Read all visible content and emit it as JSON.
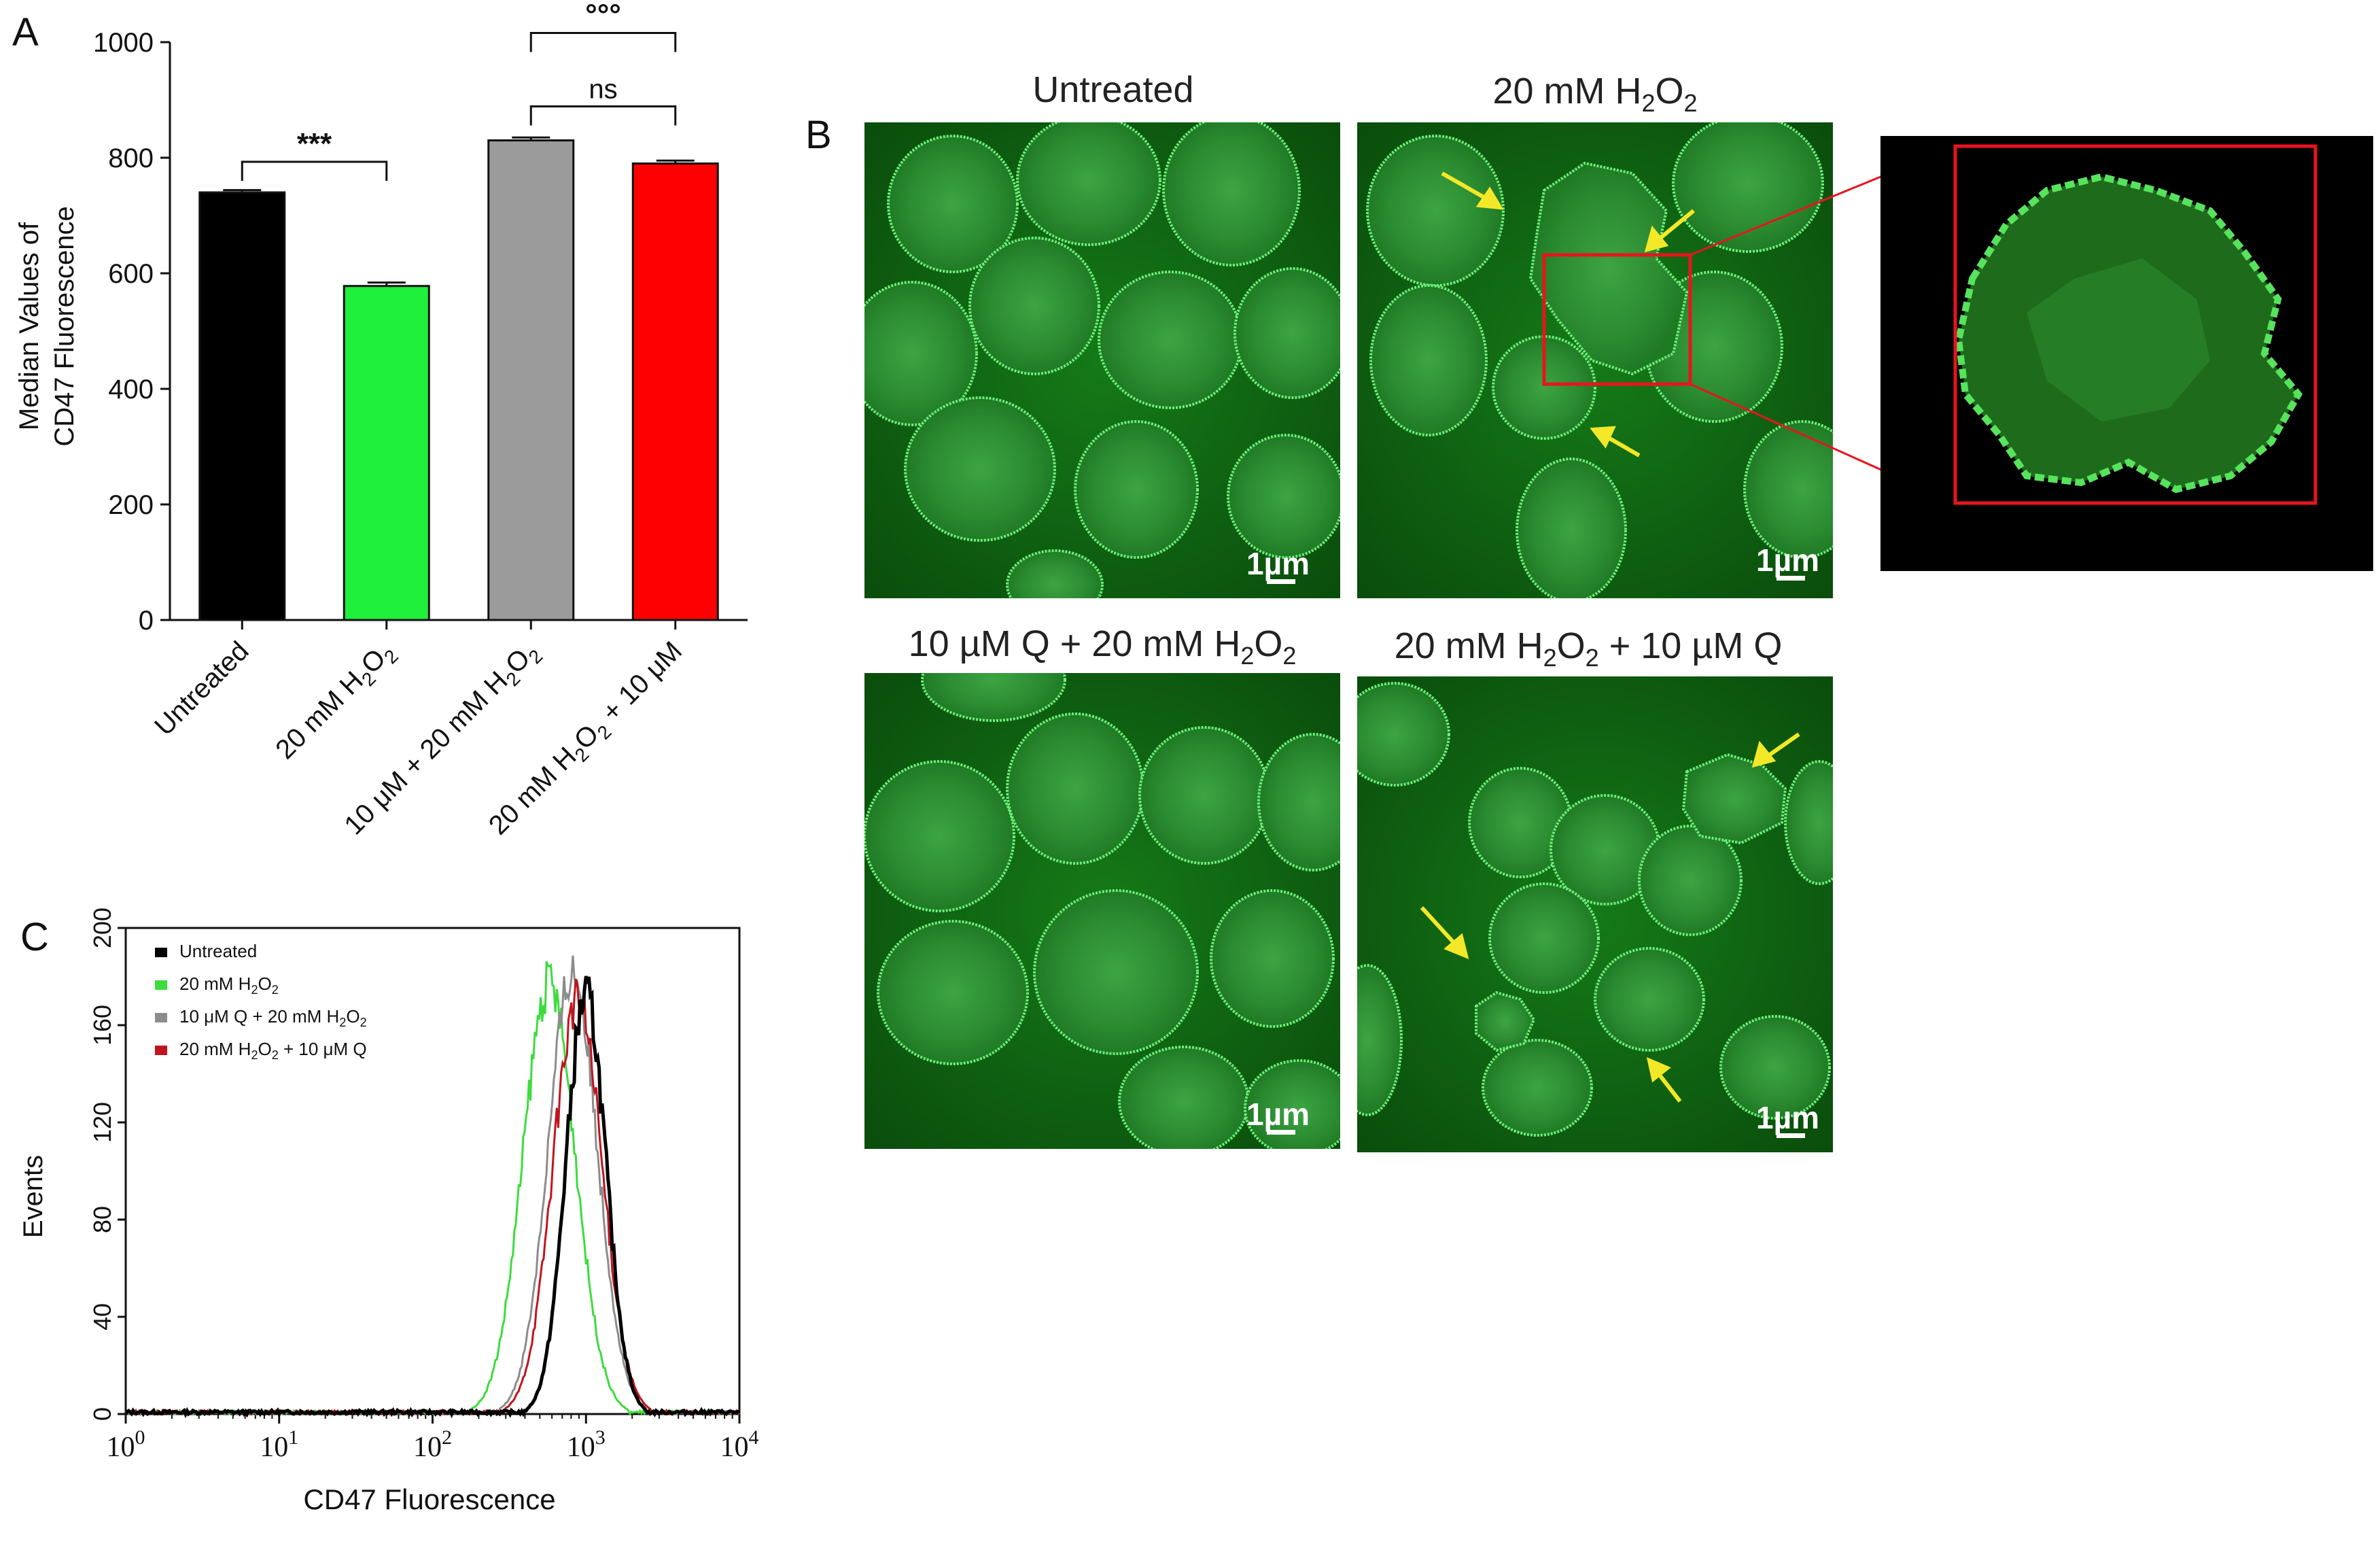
{
  "panels": {
    "A": {
      "letter": "A"
    },
    "B": {
      "letter": "B"
    },
    "C": {
      "letter": "C"
    }
  },
  "chart_data": [
    {
      "panel": "A",
      "type": "bar",
      "ylabel_line1": "Median Values of",
      "ylabel_line2": "CD47 Fluorescence",
      "ylim": [
        0,
        1000
      ],
      "yticks": [
        "0",
        "200",
        "400",
        "600",
        "800",
        "1000"
      ],
      "bars": [
        {
          "label": "Untreated",
          "value": 740,
          "error": 4,
          "color": "#000000"
        },
        {
          "label_parts": [
            "20 mM H",
            "2",
            "O",
            "2"
          ],
          "value": 578,
          "error": 6,
          "color": "#1ef03c"
        },
        {
          "label_parts": [
            "10 μM + 20 mM H",
            "2",
            "O",
            "2"
          ],
          "value": 830,
          "error": 5,
          "color": "#9b9b9b"
        },
        {
          "label_parts": [
            "20 mM H",
            "2",
            "O",
            "2",
            " + 10 μM"
          ],
          "value": 790,
          "error": 5,
          "color": "#ff0000"
        }
      ],
      "significance": [
        {
          "label": "***",
          "from": 0,
          "to": 1
        },
        {
          "label": "ns",
          "from": 2,
          "to": 3
        },
        {
          "label": "°°°",
          "from": 2,
          "to": 3
        }
      ]
    },
    {
      "panel": "C",
      "type": "line",
      "xlabel": "CD47 Fluorescence",
      "ylabel": "Events",
      "x_scale": "log",
      "xlim": [
        1,
        10000
      ],
      "ylim": [
        0,
        200
      ],
      "yticks": [
        "0",
        "40",
        "80",
        "120",
        "160",
        "200"
      ],
      "xticks": [
        {
          "base": "10",
          "exp": "0"
        },
        {
          "base": "10",
          "exp": "1"
        },
        {
          "base": "10",
          "exp": "2"
        },
        {
          "base": "10",
          "exp": "3"
        },
        {
          "base": "10",
          "exp": "4"
        }
      ],
      "legend_position": "top-left",
      "series": [
        {
          "name": "Untreated",
          "color": "#000000",
          "peak_x": 1000,
          "peak_y": 172,
          "width": 0.13
        },
        {
          "name_parts": [
            "20 mM H",
            "2",
            "O",
            "2"
          ],
          "color": "#3cdc3c",
          "peak_x": 575,
          "peak_y": 177,
          "width": 0.17
        },
        {
          "name_parts": [
            "10 μM Q + 20 mM H",
            "2",
            "O",
            "2"
          ],
          "color": "#8c8c8c",
          "peak_x": 820,
          "peak_y": 182,
          "width": 0.16
        },
        {
          "name_parts": [
            "20 mM H",
            "2",
            "O",
            "2",
            " + 10 μM Q"
          ],
          "color": "#c0141e",
          "peak_x": 880,
          "peak_y": 170,
          "width": 0.16
        }
      ]
    }
  ],
  "micrographs": {
    "untreated": {
      "title": "Untreated",
      "scale": "1µm"
    },
    "h2o2": {
      "title_parts": [
        "20 mM H",
        "2",
        "O",
        "2"
      ],
      "scale": "1µm"
    },
    "q_then_h2o2": {
      "title_parts": [
        "10 µM Q + 20 mM H",
        "2",
        "O",
        "2"
      ],
      "scale": "1µm"
    },
    "h2o2_then_q": {
      "title_parts": [
        "20 mM H",
        "2",
        "O",
        "2",
        " + 10 µM Q"
      ],
      "scale": "1µm"
    }
  },
  "colors": {
    "cell_green": "#2ee64a",
    "arrow": "#f3e828",
    "zoom_box": "#e8141e",
    "background_green": "#0d5a0e"
  }
}
